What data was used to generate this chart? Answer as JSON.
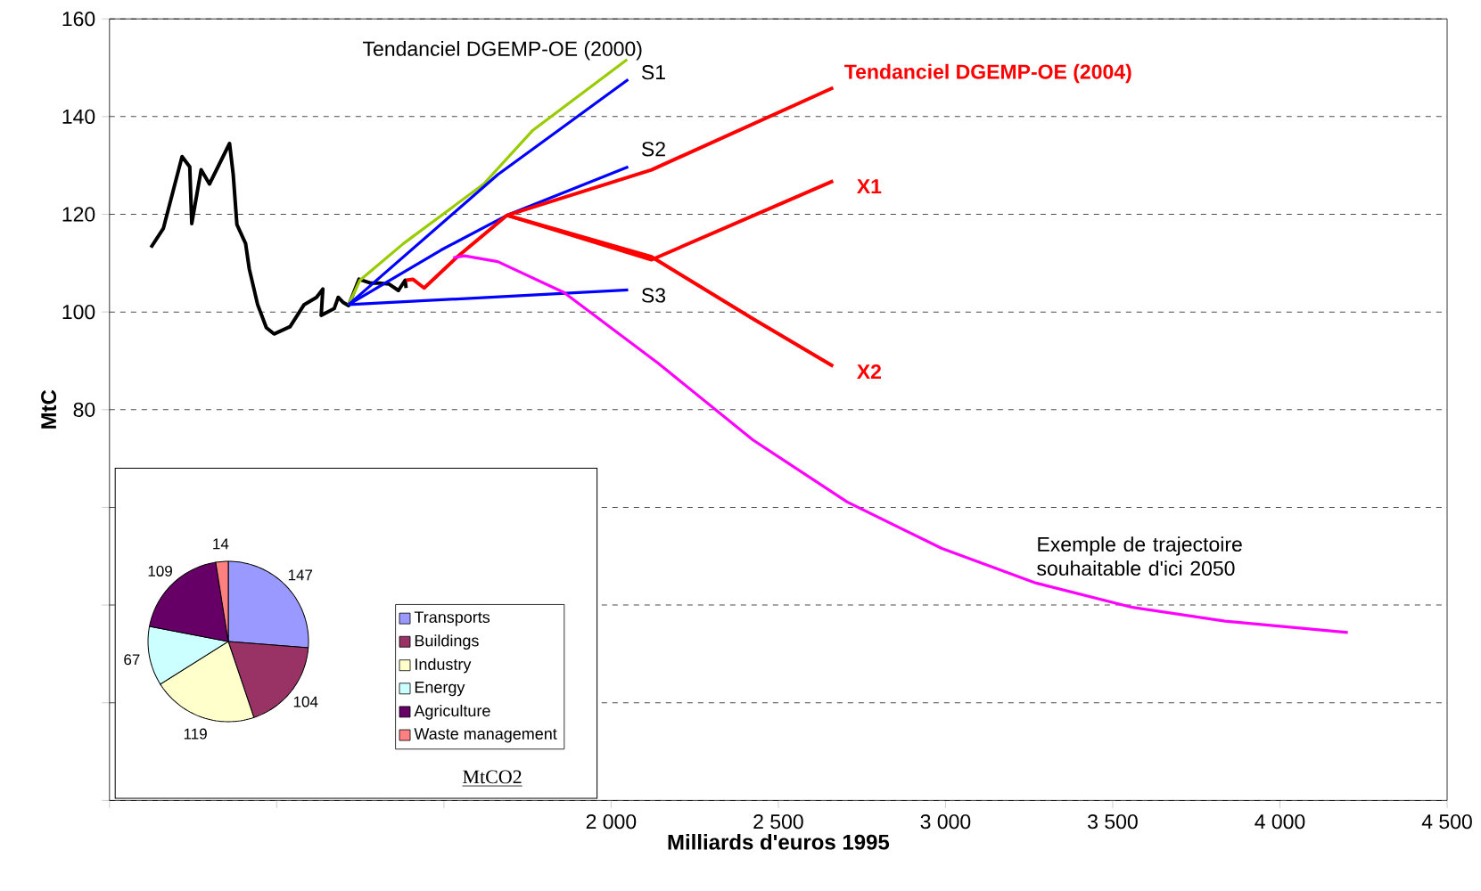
{
  "chart_data": [
    {
      "type": "line",
      "xlabel": "Milliards d'euros 1995",
      "ylabel": "MtC",
      "xlim": [
        500,
        4500
      ],
      "ylim": [
        0,
        160
      ],
      "xticks": [
        {
          "value": 500,
          "label": null
        },
        {
          "value": 1000,
          "label": null
        },
        {
          "value": 1500,
          "label": null
        },
        {
          "value": 2000,
          "label": "2 000"
        },
        {
          "value": 2500,
          "label": "2 500"
        },
        {
          "value": 3000,
          "label": "3 000"
        },
        {
          "value": 3500,
          "label": "3 500"
        },
        {
          "value": 4000,
          "label": "4 000"
        },
        {
          "value": 4500,
          "label": "4 500"
        }
      ],
      "yticks": [
        {
          "value": 0,
          "label": null
        },
        {
          "value": 20,
          "label": null
        },
        {
          "value": 40,
          "label": null
        },
        {
          "value": 60,
          "label": null
        },
        80,
        100,
        120,
        140,
        160
      ],
      "grid": "y",
      "legend": false,
      "series": [
        {
          "color": "#000000",
          "x": [
            624,
            661,
            717,
            740,
            746,
            774,
            799,
            859,
            870,
            881,
            907,
            918,
            943,
            969,
            992,
            1040,
            1082,
            1119,
            1138,
            1133,
            1172,
            1184,
            1198,
            1215,
            1246,
            1282,
            1308,
            1336,
            1364,
            1384,
            1387
          ],
          "values": [
            113.2,
            117.1,
            131.8,
            129.7,
            118.1,
            129.1,
            126.2,
            134.5,
            128.1,
            117.9,
            114.0,
            108.8,
            101.5,
            96.8,
            95.5,
            97.0,
            101.5,
            103.0,
            104.7,
            99.3,
            100.7,
            103.0,
            102.0,
            101.3,
            106.7,
            105.9,
            105.9,
            105.7,
            104.4,
            106.5,
            104.9
          ]
        },
        {
          "name": "Tendanciel DGEMP-OE (2000)",
          "color": "#99cc00",
          "x": [
            1215,
            1249,
            1379,
            1619,
            1766,
            2048
          ],
          "values": [
            101.5,
            106.5,
            114.0,
            126.2,
            137.2,
            151.7
          ]
        },
        {
          "name": "S1",
          "color": "#0000ff",
          "x": [
            1215,
            1661,
            2051
          ],
          "values": [
            101.5,
            128.1,
            147.6
          ]
        },
        {
          "name": "S2",
          "color": "#0000ff",
          "x": [
            1215,
            1492,
            1689,
            2051
          ],
          "values": [
            101.5,
            112.7,
            119.8,
            129.7
          ]
        },
        {
          "name": "S3",
          "color": "#0000ff",
          "x": [
            1215,
            2051
          ],
          "values": [
            101.5,
            104.5
          ]
        },
        {
          "name": "Tendanciel DGEMP-OE (2004)",
          "color": "#ff0000",
          "x": [
            1387,
            1407,
            1441,
            1540,
            1689,
            2121,
            2664
          ],
          "values": [
            106.5,
            106.7,
            104.9,
            111.3,
            119.8,
            129.1,
            145.9
          ]
        },
        {
          "name": "X1",
          "color": "#ff0000",
          "x": [
            1689,
            2121,
            2664
          ],
          "values": [
            119.8,
            110.7,
            126.8
          ]
        },
        {
          "name": "X2",
          "color": "#ff0000",
          "x": [
            1689,
            2121,
            2424,
            2664
          ],
          "values": [
            119.8,
            111.3,
            98.6,
            88.9
          ]
        },
        {
          "name": "Exemple de trajectoire souhaitable d'ici 2050",
          "color": "#ff00ff",
          "x": [
            1528,
            1562,
            1661,
            1859,
            2141,
            2424,
            2706,
            2989,
            3271,
            3554,
            3836,
            4203
          ],
          "values": [
            111.1,
            111.5,
            110.3,
            104.0,
            89.5,
            73.8,
            61.1,
            51.6,
            44.5,
            39.6,
            36.7,
            34.4
          ]
        }
      ]
    },
    {
      "type": "pie",
      "categories": [
        "Transports",
        "Buildings",
        "Industry",
        "Energy",
        "Agriculture",
        "Waste management"
      ],
      "values": [
        147,
        104,
        119,
        67,
        109,
        14
      ],
      "colors": [
        "#9999ff",
        "#993366",
        "#ffffcc",
        "#ccffff",
        "#660066",
        "#ff8080"
      ],
      "data_labels": true,
      "legend": "right",
      "annotations": [
        "MtCO2"
      ]
    }
  ]
}
